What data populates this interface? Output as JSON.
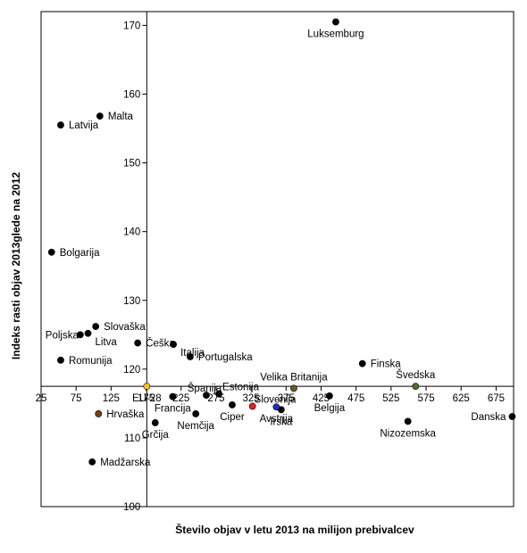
{
  "chart_data": {
    "type": "scatter",
    "xlabel": "Število objav  v letu 2013 na milijon prebivalcev",
    "ylabel": "Indeks rasti objav 2013glede na 2012",
    "xlim": [
      25,
      700
    ],
    "ylim": [
      100,
      172
    ],
    "x_ticks": [
      "25",
      "75",
      "125",
      "175",
      "225",
      "275",
      "325",
      "375",
      "425",
      "475",
      "525",
      "575",
      "625",
      "675"
    ],
    "y_ticks": [
      "100",
      "110",
      "120",
      "130",
      "140",
      "150",
      "160",
      "170"
    ],
    "cross_x": 176,
    "cross_y": 117.5,
    "grid": false,
    "legend": "none",
    "colors": {
      "default": "#000000",
      "slovenija": "#e32222",
      "eu28": "#f2c12e",
      "avstrija": "#1f2fbf",
      "velika_britanija": "#6b5a2a",
      "svedska": "#4d6b2f",
      "hrvaska": "#7a3b1e"
    },
    "points": [
      {
        "label": "Luksemburg",
        "x": 446,
        "y": 170.5,
        "color": "#000000",
        "anchor": "below"
      },
      {
        "label": "Malta",
        "x": 109,
        "y": 156.8,
        "color": "#000000",
        "anchor": "right"
      },
      {
        "label": "Latvija",
        "x": 53,
        "y": 155.5,
        "color": "#000000",
        "anchor": "right"
      },
      {
        "label": "Bolgarija",
        "x": 40,
        "y": 137.0,
        "color": "#000000",
        "anchor": "right"
      },
      {
        "label": "Slovaška",
        "x": 103,
        "y": 126.2,
        "color": "#000000",
        "anchor": "right"
      },
      {
        "label": "Poljska",
        "x": 81,
        "y": 125.0,
        "color": "#000000",
        "anchor": "below-left"
      },
      {
        "label": "Litva",
        "x": 92,
        "y": 125.2,
        "color": "#000000",
        "anchor": "below-right"
      },
      {
        "label": "Romunija",
        "x": 53,
        "y": 121.3,
        "color": "#000000",
        "anchor": "right"
      },
      {
        "label": "Češka",
        "x": 163,
        "y": 123.8,
        "color": "#000000",
        "anchor": "right"
      },
      {
        "label": "Italija",
        "x": 214,
        "y": 123.6,
        "color": "#000000",
        "anchor": "below-right"
      },
      {
        "label": "Portugalska",
        "x": 238,
        "y": 121.8,
        "color": "#000000",
        "anchor": "right"
      },
      {
        "label": "Finska",
        "x": 484,
        "y": 120.8,
        "color": "#000000",
        "anchor": "right"
      },
      {
        "label": "Velika Britanija",
        "x": 386,
        "y": 117.2,
        "color": "#6b5a2a",
        "anchor": "above"
      },
      {
        "label": "Švedska",
        "x": 560,
        "y": 117.5,
        "color": "#4d6b2f",
        "anchor": "above"
      },
      {
        "label": "EU-28",
        "x": 176,
        "y": 117.5,
        "color": "#f2c12e",
        "anchor": "below",
        "label_color": "#f2c12e"
      },
      {
        "label": "Francija",
        "x": 213,
        "y": 116.0,
        "color": "#000000",
        "anchor": "below"
      },
      {
        "label": "Španija",
        "x": 261,
        "y": 116.2,
        "color": "#000000",
        "anchor": "left-above"
      },
      {
        "label": "Estonija",
        "x": 279,
        "y": 116.4,
        "color": "#000000",
        "anchor": "right-above"
      },
      {
        "label": "Irska",
        "x": 368,
        "y": 114.1,
        "color": "#000000",
        "anchor": "below"
      },
      {
        "label": "Belgija",
        "x": 437,
        "y": 116.1,
        "color": "#000000",
        "anchor": "below"
      },
      {
        "label": "Ciper",
        "x": 298,
        "y": 114.8,
        "color": "#000000",
        "anchor": "below"
      },
      {
        "label": "Slovenija",
        "x": 327,
        "y": 114.6,
        "color": "#e32222",
        "anchor": "above-right",
        "label_color": "#e32222"
      },
      {
        "label": "Avstrija",
        "x": 361,
        "y": 114.5,
        "color": "#1f2fbf",
        "anchor": "below"
      },
      {
        "label": "Nemčija",
        "x": 246,
        "y": 113.5,
        "color": "#000000",
        "anchor": "below"
      },
      {
        "label": "Grčija",
        "x": 188,
        "y": 112.2,
        "color": "#000000",
        "anchor": "below"
      },
      {
        "label": "Hrvaška",
        "x": 107,
        "y": 113.5,
        "color": "#7a3b1e",
        "anchor": "right"
      },
      {
        "label": "Nizozemska",
        "x": 549,
        "y": 112.4,
        "color": "#000000",
        "anchor": "below"
      },
      {
        "label": "Danska",
        "x": 698,
        "y": 113.1,
        "color": "#000000",
        "anchor": "left"
      },
      {
        "label": "Madžarska",
        "x": 98,
        "y": 106.5,
        "color": "#000000",
        "anchor": "right"
      }
    ]
  }
}
